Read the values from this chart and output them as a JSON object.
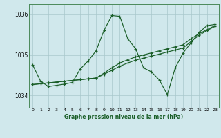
{
  "title": "Graphe pression niveau de la mer (hPa)",
  "background_color": "#d0e8ec",
  "grid_color": "#a8c8cc",
  "line_color": "#1a5e28",
  "xlim": [
    -0.5,
    23.5
  ],
  "ylim": [
    1033.7,
    1036.25
  ],
  "yticks": [
    1034,
    1035,
    1036
  ],
  "xticks": [
    0,
    1,
    2,
    3,
    4,
    5,
    6,
    7,
    8,
    9,
    10,
    11,
    12,
    13,
    14,
    15,
    16,
    17,
    18,
    19,
    20,
    21,
    22,
    23
  ],
  "series_spike": [
    1034.75,
    1034.35,
    1034.22,
    1034.25,
    1034.28,
    1034.32,
    1034.65,
    1034.85,
    1035.1,
    1035.6,
    1035.97,
    1035.95,
    1035.4,
    1035.15,
    1034.68,
    1034.58,
    1034.38,
    1034.02,
    1034.68,
    1035.05,
    1035.3,
    1035.55,
    1035.72,
    1035.75
  ],
  "series_trend1": [
    1034.27,
    1034.29,
    1034.31,
    1034.33,
    1034.35,
    1034.37,
    1034.39,
    1034.41,
    1034.43,
    1034.52,
    1034.62,
    1034.72,
    1034.8,
    1034.87,
    1034.92,
    1034.97,
    1035.02,
    1035.07,
    1035.12,
    1035.17,
    1035.33,
    1035.48,
    1035.6,
    1035.7
  ],
  "series_trend2": [
    1034.27,
    1034.29,
    1034.31,
    1034.33,
    1034.35,
    1034.37,
    1034.39,
    1034.41,
    1034.43,
    1034.55,
    1034.68,
    1034.8,
    1034.88,
    1034.95,
    1035.0,
    1035.05,
    1035.1,
    1035.15,
    1035.2,
    1035.25,
    1035.4,
    1035.52,
    1035.62,
    1035.72
  ]
}
